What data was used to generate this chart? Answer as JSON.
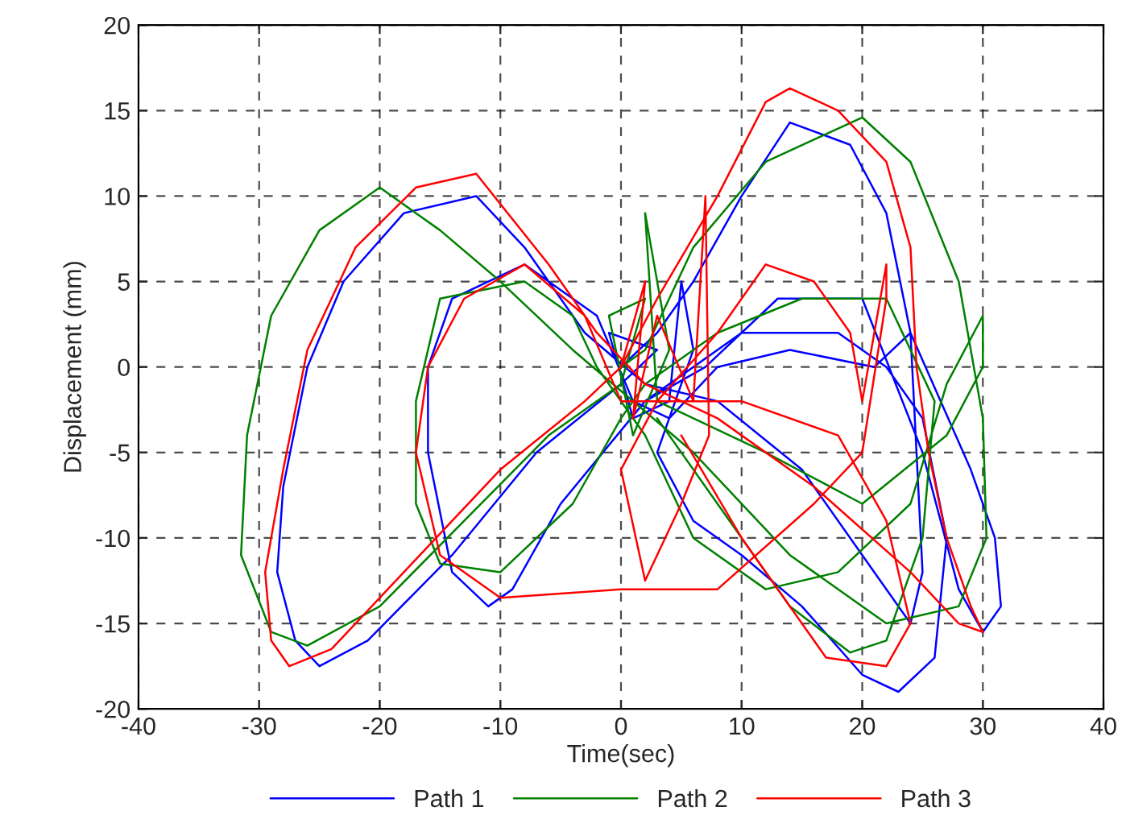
{
  "chart_data": {
    "type": "line",
    "xlabel": "Time(sec)",
    "ylabel": "Displacement (mm)",
    "xlim": [
      -40,
      40
    ],
    "ylim": [
      -20,
      20
    ],
    "xticks": [
      -40,
      -30,
      -20,
      -10,
      0,
      10,
      20,
      30,
      40
    ],
    "yticks": [
      -20,
      -15,
      -10,
      -5,
      0,
      5,
      10,
      15,
      20
    ],
    "grid": true,
    "legend": "bottom",
    "series": [
      {
        "name": "Path 1",
        "color": "#0000ff",
        "x": [
          0,
          3,
          6,
          10,
          14,
          19,
          22,
          24,
          24.5,
          25,
          24,
          21,
          15,
          8,
          2,
          -3,
          -8,
          -12,
          -18,
          -23,
          -26,
          -28,
          -28.5,
          -27,
          -25,
          -21,
          -14,
          -7,
          0,
          3,
          -1,
          1,
          4,
          5,
          6,
          3,
          6,
          10,
          15,
          20,
          23,
          26,
          27,
          25,
          22,
          18,
          10,
          2,
          -5,
          -9,
          -11,
          -14,
          -16,
          -16,
          -14,
          -8,
          -2,
          1,
          4,
          8,
          14,
          21,
          24,
          29,
          31,
          31.5,
          30,
          28,
          25,
          20,
          13,
          7,
          2
        ],
        "values": [
          0,
          2,
          5,
          10,
          14.3,
          13,
          9,
          2,
          -5,
          -12,
          -15,
          -12,
          -6,
          -2,
          -1,
          2,
          7,
          10,
          9,
          5,
          0,
          -7,
          -12,
          -16,
          -17.5,
          -16,
          -11,
          -5,
          -1,
          1,
          2,
          -3,
          -2,
          5,
          1,
          -5,
          -9,
          -11,
          -14,
          -18,
          -19,
          -17,
          -10,
          -3,
          0,
          2,
          2,
          -2,
          -8,
          -13,
          -14,
          -12,
          -5,
          0,
          4,
          6,
          3,
          -2,
          -3,
          0,
          1,
          0,
          2,
          -6,
          -10,
          -14,
          -15.5,
          -13,
          -5,
          4,
          4,
          0,
          -2
        ]
      },
      {
        "name": "Path 2",
        "color": "#008000",
        "x": [
          0,
          2,
          6,
          12,
          20,
          24,
          28,
          30,
          30.3,
          28,
          22,
          14,
          6,
          1,
          -4,
          -10,
          -15,
          -20,
          -25,
          -29,
          -31,
          -31.5,
          -29,
          -26,
          -20,
          -13,
          -6,
          0,
          2,
          -1,
          1,
          4,
          2,
          3,
          6,
          12,
          20,
          27,
          30,
          30,
          27,
          24,
          18,
          12,
          6,
          2,
          -2,
          -4,
          -8,
          -15,
          -17,
          -17,
          -15,
          -10,
          -4,
          0,
          2,
          8,
          15,
          22,
          26,
          25,
          22,
          19,
          14,
          8,
          3
        ],
        "values": [
          0,
          1,
          7,
          12,
          14.6,
          12,
          5,
          -3,
          -10,
          -14,
          -15,
          -11,
          -5,
          -2,
          1,
          5,
          8,
          10.5,
          8,
          3,
          -4,
          -11,
          -15.5,
          -16.3,
          -14,
          -9,
          -4,
          -1,
          4,
          3,
          -4,
          1,
          9,
          -2,
          -3,
          -5,
          -8,
          -4,
          0,
          3,
          -1,
          -8,
          -12,
          -13,
          -10,
          -4,
          0,
          3,
          5,
          4,
          -2,
          -8,
          -11.5,
          -12,
          -8,
          -3,
          -1,
          2,
          4,
          4,
          -2,
          -10,
          -16,
          -16.7,
          -14,
          -8,
          -3
        ]
      },
      {
        "name": "Path 3",
        "color": "#ff0000",
        "x": [
          0,
          3,
          8,
          12,
          14,
          18,
          22,
          24,
          24.5,
          25.5,
          27,
          29,
          30,
          28,
          24,
          16,
          8,
          2,
          -2,
          -6,
          -12,
          -17,
          -22,
          -26,
          -28,
          -29.5,
          -29,
          -27.5,
          -24,
          -18,
          -10,
          -3,
          0,
          2,
          1,
          3,
          6,
          7,
          7.3,
          5,
          2,
          0,
          3,
          8,
          12,
          16,
          19,
          20,
          22,
          22,
          20,
          16,
          8,
          0,
          -10,
          -15,
          -17,
          -16,
          -13,
          -8,
          -3,
          0,
          3,
          10,
          18,
          22,
          24,
          22,
          17,
          10,
          5
        ],
        "values": [
          0,
          4,
          10,
          15.5,
          16.3,
          15,
          12,
          7,
          0,
          -5,
          -10,
          -14,
          -15.5,
          -15,
          -12,
          -7,
          -3,
          -1,
          2,
          6,
          11.3,
          10.5,
          7,
          1,
          -6,
          -12,
          -16,
          -17.5,
          -16.5,
          -12,
          -6,
          -2,
          0,
          5,
          -3,
          3,
          -2,
          10,
          -4,
          -8,
          -12.5,
          -6,
          -2,
          2,
          6,
          5,
          2,
          -2,
          6,
          4,
          -5,
          -8,
          -13,
          -13,
          -13.5,
          -11,
          -5,
          0,
          4,
          6,
          3,
          -2,
          -2,
          -2,
          -4,
          -9,
          -15,
          -17.5,
          -17,
          -10,
          -4
        ]
      }
    ]
  }
}
